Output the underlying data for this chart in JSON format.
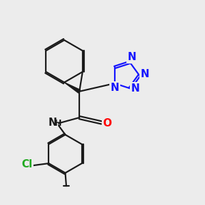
{
  "background_color": "#ececec",
  "bond_color": "#1a1a1a",
  "nitrogen_color": "#1414ff",
  "oxygen_color": "#ff0000",
  "chlorine_color": "#22aa22",
  "bond_width": 1.6,
  "font_size_atoms": 11,
  "font_size_small": 9,
  "xlim": [
    0,
    10
  ],
  "ylim": [
    0,
    10
  ]
}
